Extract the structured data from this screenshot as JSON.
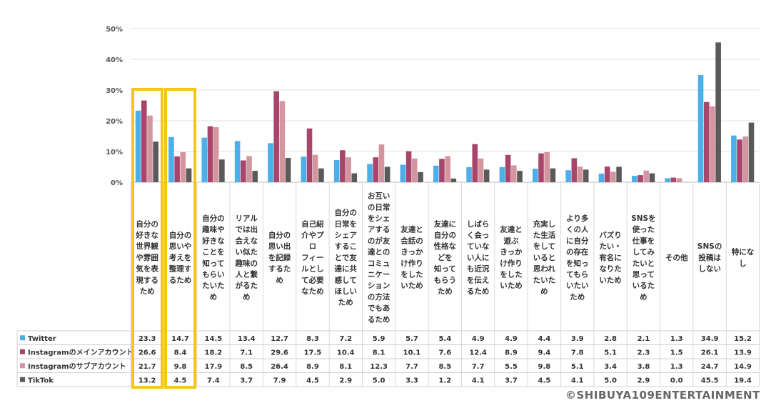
{
  "chart_data": {
    "type": "bar",
    "ylim": [
      0,
      50
    ],
    "yticks": [
      "0%",
      "10%",
      "20%",
      "30%",
      "40%",
      "50%"
    ],
    "grid": true,
    "legend": "data-table-left",
    "categories": [
      "自分の好きな世界観や雰囲気を表現するため",
      "自分の思いや考えを整理するため",
      "自分の趣味や好きなことを知ってもらいたいため",
      "リアルでは出会えない似た趣味の人と繋がるため",
      "自分の思い出を記録するため",
      "自己紹介やプロフィールとして必要なため",
      "自分の日常をシェアすることで友達に共感してほしいため",
      "お互いの日常をシェアするのが友達とのコミュニケーションの方法でもあるため",
      "友達と会話のきっかけ作りをしたいため",
      "友達に自分の性格などを知ってもらうため",
      "しばらく会っていない人にも近況を伝えるため",
      "友達と遊ぶきっかけ作りをしたいため",
      "充実した生活をしていると思われたいため",
      "より多くの人に自分の存在を知ってもらいたいため",
      "バズりたい・有名になりたいため",
      "SNSを使った仕事をしてみたいと思っているため",
      "その他",
      "SNSの投稿はしない",
      "特になし"
    ],
    "category_lines": [
      [
        "自分の",
        "好きな",
        "世界観",
        "や雰囲",
        "気を表",
        "現する",
        "ため"
      ],
      [
        "自分の",
        "思いや",
        "考えを",
        "整理す",
        "るため"
      ],
      [
        "自分の",
        "趣味や",
        "好きな",
        "ことを",
        "知って",
        "もらい",
        "たいた",
        "め"
      ],
      [
        "リアル",
        "では出",
        "会えな",
        "い似た",
        "趣味の",
        "人と繋",
        "がるた",
        "め"
      ],
      [
        "自分の",
        "思い出",
        "を記録",
        "するた",
        "め"
      ],
      [
        "自己紹",
        "介やプ",
        "ロ",
        "フィー",
        "ルとし",
        "て必要",
        "なため"
      ],
      [
        "自分の",
        "日常を",
        "シェア",
        "するこ",
        "とで友",
        "達に共",
        "感して",
        "ほしい",
        "ため"
      ],
      [
        "お互い",
        "の日常",
        "をシェ",
        "アする",
        "のが友",
        "達との",
        "コミュ",
        "ニケー",
        "ション",
        "の方法",
        "でもあ",
        "るため"
      ],
      [
        "友達と",
        "会話の",
        "きっか",
        "け作り",
        "をした",
        "いため"
      ],
      [
        "友達に",
        "自分の",
        "性格な",
        "どを",
        "知って",
        "もらう",
        "ため"
      ],
      [
        "しばら",
        "く会っ",
        "ていな",
        "い人に",
        "も近況",
        "を伝え",
        "るため"
      ],
      [
        "友達と",
        "遊ぶ",
        "きっか",
        "け作り",
        "をした",
        "いため"
      ],
      [
        "充実し",
        "た生活",
        "をして",
        "いると",
        "思われ",
        "たいた",
        "め"
      ],
      [
        "より多",
        "くの人",
        "に自分",
        "の存在",
        "を知っ",
        "てもら",
        "いたい",
        "ため"
      ],
      [
        "バズり",
        "たい・",
        "有名に",
        "なりた",
        "いため"
      ],
      [
        "SNSを",
        "使った",
        "仕事を",
        "してみ",
        "たいと",
        "思って",
        "いるた",
        "め"
      ],
      [
        "その他"
      ],
      [
        "SNSの",
        "投稿は",
        "しない"
      ],
      [
        "特にな",
        "し"
      ]
    ],
    "series": [
      {
        "name": "Twitter",
        "color": "#4DAFEA",
        "values": [
          23.3,
          14.7,
          14.5,
          13.4,
          12.7,
          8.3,
          7.2,
          5.9,
          5.7,
          5.4,
          4.9,
          4.9,
          4.4,
          3.9,
          2.8,
          2.1,
          1.3,
          34.9,
          15.2
        ]
      },
      {
        "name": "Instagramのメインアカウント",
        "color": "#A8456A",
        "values": [
          26.6,
          8.4,
          18.2,
          7.1,
          29.6,
          17.5,
          10.4,
          8.1,
          10.1,
          7.6,
          12.4,
          8.9,
          9.4,
          7.8,
          5.1,
          2.3,
          1.5,
          26.1,
          13.9
        ]
      },
      {
        "name": "Instagramのサブアカウント",
        "color": "#D4969E",
        "values": [
          21.7,
          9.8,
          17.9,
          8.5,
          26.4,
          8.9,
          8.1,
          12.3,
          7.7,
          8.5,
          7.7,
          5.5,
          9.8,
          5.1,
          3.4,
          3.8,
          1.3,
          24.7,
          14.9
        ]
      },
      {
        "name": "TikTok",
        "color": "#5A5A5A",
        "values": [
          13.2,
          4.5,
          7.4,
          3.7,
          7.9,
          4.5,
          2.9,
          5.0,
          3.3,
          1.2,
          4.1,
          3.7,
          4.5,
          4.1,
          5.0,
          2.9,
          0.0,
          45.5,
          19.4
        ]
      }
    ],
    "highlighted_categories": [
      0,
      1
    ],
    "highlight_color": "#F5C518"
  },
  "footer": {
    "credit": "©SHIBUYA109ENTERTAINMENT"
  }
}
